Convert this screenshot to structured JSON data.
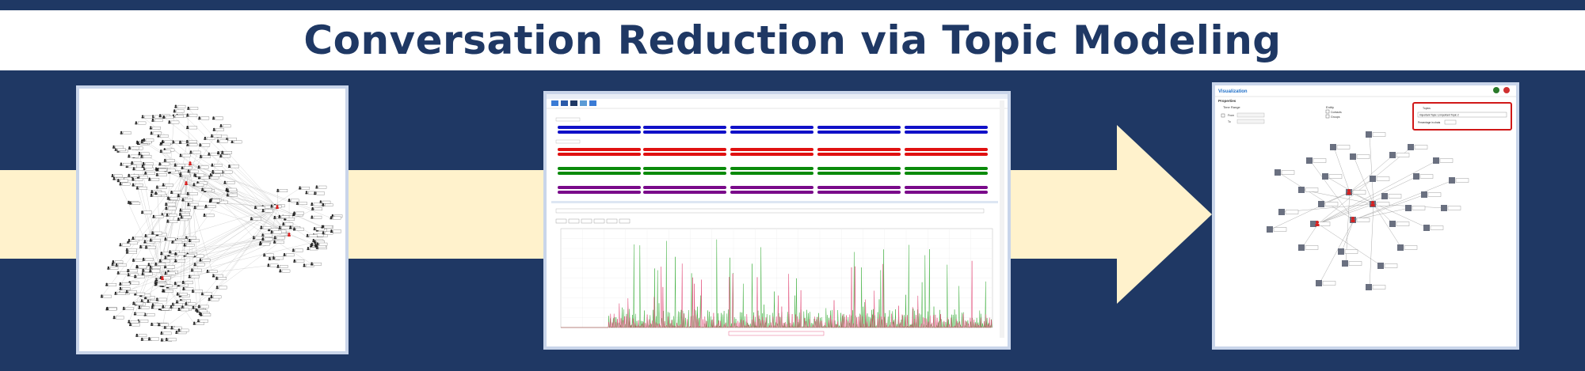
{
  "header": {
    "title": "Conversation Reduction via Topic Modeling"
  },
  "colors": {
    "background": "#1f3864",
    "title_text": "#1f3864",
    "band": "#fff2cc",
    "panel_border": "#c9d5ea",
    "series_blue": "#1010c8",
    "series_red": "#e01010",
    "series_green": "#0a8a0a",
    "series_purple": "#7a0a8a",
    "highlight_box": "#d01818"
  },
  "panels": {
    "network_full": {
      "icon": "contact-network-graph"
    },
    "topic_timeline": {
      "icon": "topic-timeline-chart"
    },
    "network_reduced": {
      "header_title": "Visualization",
      "section_label": "Properties",
      "time_range_label": "Time Range",
      "from_label": "From",
      "to_label": "To",
      "entity_label": "Entity",
      "contacts_label": "Contacts",
      "groups_label": "Groups",
      "topics_label": "Topics",
      "topics_selected": "Important Topic 1,Important Topic 2",
      "percentage_label": "Percentage in chats"
    }
  }
}
